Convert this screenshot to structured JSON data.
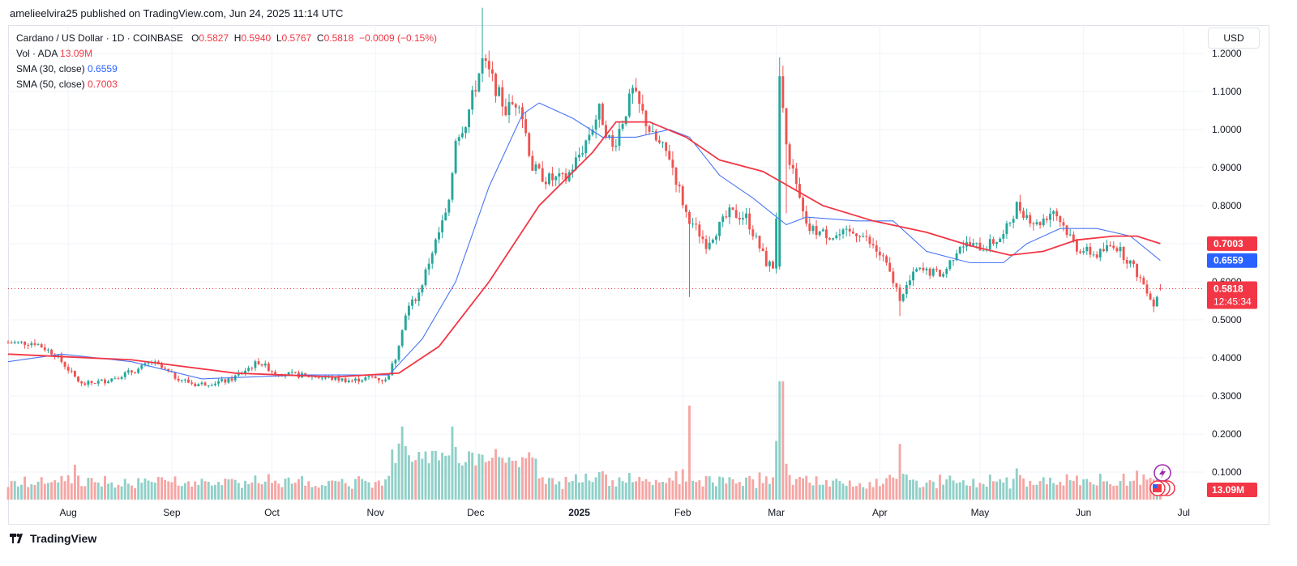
{
  "header": {
    "published_line": "amelieelvira25 published on TradingView.com, Jun 24, 2025 11:14 UTC"
  },
  "legend": {
    "symbol": "Cardano / US Dollar · 1D · COINBASE",
    "o_label": "O",
    "o_value": "0.5827",
    "h_label": "H",
    "h_value": "0.5940",
    "l_label": "L",
    "l_value": "0.5767",
    "c_label": "C",
    "c_value": "0.5818",
    "change": "−0.0009 (−0.15%)",
    "vol_label": "Vol · ADA",
    "vol_value": "13.09M",
    "sma30_label": "SMA (30, close)",
    "sma30_value": "0.6559",
    "sma50_label": "SMA (50, close)",
    "sma50_value": "0.7003"
  },
  "currency_button": "USD",
  "footer": {
    "brand": "TradingView"
  },
  "colors": {
    "up": "#26a69a",
    "down": "#ef5350",
    "up_vol": "#8fd0c8",
    "down_vol": "#f5a6a4",
    "sma30": "#4a76f2",
    "sma50": "#f23645",
    "grid": "#f0f3fa",
    "axis_text": "#131722"
  },
  "chart_data": {
    "type": "candlestick",
    "title": "Cardano / US Dollar · 1D · COINBASE",
    "x_axis": {
      "ticks": [
        "Aug",
        "Sep",
        "Oct",
        "Nov",
        "Dec",
        "2025",
        "Feb",
        "Mar",
        "Apr",
        "May",
        "Jun",
        "Jul"
      ],
      "range": [
        "2024-07-14",
        "2025-07-07"
      ]
    },
    "y_axis": {
      "ticks": [
        "1.2000",
        "1.1000",
        "1.0000",
        "0.9000",
        "0.8000",
        "0.7000",
        "0.6000",
        "0.5000",
        "0.4000",
        "0.3000",
        "0.2000",
        "0.1000"
      ],
      "range": [
        0.0,
        1.2
      ],
      "position": "right"
    },
    "price_key_points": [
      [
        "2024-07-14",
        0.44
      ],
      [
        "2024-07-22",
        0.44
      ],
      [
        "2024-07-28",
        0.41
      ],
      [
        "2024-08-05",
        0.33
      ],
      [
        "2024-08-12",
        0.34
      ],
      [
        "2024-08-22",
        0.37
      ],
      [
        "2024-08-26",
        0.39
      ],
      [
        "2024-09-02",
        0.35
      ],
      [
        "2024-09-08",
        0.33
      ],
      [
        "2024-09-18",
        0.34
      ],
      [
        "2024-09-27",
        0.39
      ],
      [
        "2024-10-02",
        0.36
      ],
      [
        "2024-10-15",
        0.35
      ],
      [
        "2024-10-25",
        0.34
      ],
      [
        "2024-10-31",
        0.35
      ],
      [
        "2024-11-04",
        0.34
      ],
      [
        "2024-11-07",
        0.4
      ],
      [
        "2024-11-10",
        0.52
      ],
      [
        "2024-11-14",
        0.57
      ],
      [
        "2024-11-18",
        0.68
      ],
      [
        "2024-11-23",
        0.8
      ],
      [
        "2024-11-25",
        0.98
      ],
      [
        "2024-11-28",
        1.02
      ],
      [
        "2024-12-03",
        1.18
      ],
      [
        "2024-12-06",
        1.13
      ],
      [
        "2024-12-10",
        1.05
      ],
      [
        "2024-12-14",
        1.08
      ],
      [
        "2024-12-18",
        0.9
      ],
      [
        "2024-12-22",
        0.87
      ],
      [
        "2024-12-28",
        0.87
      ],
      [
        "2025-01-02",
        0.95
      ],
      [
        "2025-01-07",
        1.05
      ],
      [
        "2025-01-11",
        0.95
      ],
      [
        "2025-01-17",
        1.1
      ],
      [
        "2025-01-23",
        0.98
      ],
      [
        "2025-01-28",
        0.93
      ],
      [
        "2025-02-02",
        0.78
      ],
      [
        "2025-02-08",
        0.7
      ],
      [
        "2025-02-15",
        0.78
      ],
      [
        "2025-02-20",
        0.77
      ],
      [
        "2025-02-26",
        0.65
      ],
      [
        "2025-02-28",
        0.64
      ],
      [
        "2025-03-03",
        1.04
      ],
      [
        "2025-03-05",
        0.92
      ],
      [
        "2025-03-10",
        0.74
      ],
      [
        "2025-03-18",
        0.72
      ],
      [
        "2025-03-26",
        0.73
      ],
      [
        "2025-04-02",
        0.66
      ],
      [
        "2025-04-07",
        0.56
      ],
      [
        "2025-04-12",
        0.63
      ],
      [
        "2025-04-20",
        0.62
      ],
      [
        "2025-04-25",
        0.7
      ],
      [
        "2025-05-02",
        0.69
      ],
      [
        "2025-05-08",
        0.72
      ],
      [
        "2025-05-12",
        0.8
      ],
      [
        "2025-05-18",
        0.75
      ],
      [
        "2025-05-23",
        0.79
      ],
      [
        "2025-05-30",
        0.69
      ],
      [
        "2025-06-05",
        0.67
      ],
      [
        "2025-06-10",
        0.7
      ],
      [
        "2025-06-15",
        0.65
      ],
      [
        "2025-06-20",
        0.58
      ],
      [
        "2025-06-22",
        0.54
      ],
      [
        "2025-06-24",
        0.5818
      ]
    ],
    "spikes": [
      {
        "date": "2025-02-03",
        "low": 0.56
      },
      {
        "date": "2025-03-02",
        "high": 1.19,
        "open": 0.64,
        "close": 1.14
      },
      {
        "date": "2025-03-04",
        "high": 1.03,
        "low": 0.78
      },
      {
        "date": "2024-12-03",
        "high": 1.32
      },
      {
        "date": "2025-04-07",
        "low": 0.51
      },
      {
        "date": "2025-06-22",
        "low": 0.52
      }
    ],
    "series": [
      {
        "name": "SMA (30, close)",
        "last_value": 0.6559,
        "points": [
          [
            "2024-07-14",
            0.39
          ],
          [
            "2024-07-30",
            0.41
          ],
          [
            "2024-08-20",
            0.39
          ],
          [
            "2024-09-10",
            0.345
          ],
          [
            "2024-10-10",
            0.355
          ],
          [
            "2024-11-05",
            0.355
          ],
          [
            "2024-11-15",
            0.45
          ],
          [
            "2024-11-25",
            0.6
          ],
          [
            "2024-12-05",
            0.85
          ],
          [
            "2024-12-15",
            1.04
          ],
          [
            "2024-12-20",
            1.07
          ],
          [
            "2024-12-30",
            1.03
          ],
          [
            "2025-01-08",
            0.98
          ],
          [
            "2025-01-18",
            0.98
          ],
          [
            "2025-01-28",
            1.0
          ],
          [
            "2025-02-03",
            0.98
          ],
          [
            "2025-02-12",
            0.88
          ],
          [
            "2025-02-22",
            0.82
          ],
          [
            "2025-03-04",
            0.75
          ],
          [
            "2025-03-10",
            0.77
          ],
          [
            "2025-03-25",
            0.76
          ],
          [
            "2025-04-05",
            0.76
          ],
          [
            "2025-04-15",
            0.68
          ],
          [
            "2025-04-28",
            0.65
          ],
          [
            "2025-05-08",
            0.65
          ],
          [
            "2025-05-15",
            0.7
          ],
          [
            "2025-05-25",
            0.74
          ],
          [
            "2025-06-05",
            0.74
          ],
          [
            "2025-06-15",
            0.72
          ],
          [
            "2025-06-24",
            0.6559
          ]
        ]
      },
      {
        "name": "SMA (50, close)",
        "last_value": 0.7003,
        "points": [
          [
            "2024-07-14",
            0.41
          ],
          [
            "2024-08-20",
            0.395
          ],
          [
            "2024-09-20",
            0.36
          ],
          [
            "2024-10-20",
            0.35
          ],
          [
            "2024-11-08",
            0.36
          ],
          [
            "2024-11-20",
            0.43
          ],
          [
            "2024-12-05",
            0.6
          ],
          [
            "2024-12-20",
            0.8
          ],
          [
            "2025-01-05",
            0.94
          ],
          [
            "2025-01-12",
            1.02
          ],
          [
            "2025-01-22",
            1.02
          ],
          [
            "2025-02-02",
            0.98
          ],
          [
            "2025-02-12",
            0.92
          ],
          [
            "2025-02-25",
            0.89
          ],
          [
            "2025-03-05",
            0.85
          ],
          [
            "2025-03-15",
            0.8
          ],
          [
            "2025-03-30",
            0.76
          ],
          [
            "2025-04-15",
            0.73
          ],
          [
            "2025-04-28",
            0.695
          ],
          [
            "2025-05-10",
            0.67
          ],
          [
            "2025-05-20",
            0.68
          ],
          [
            "2025-05-30",
            0.71
          ],
          [
            "2025-06-10",
            0.72
          ],
          [
            "2025-06-17",
            0.72
          ],
          [
            "2025-06-24",
            0.7003
          ]
        ]
      }
    ],
    "volume_spikes": [
      [
        "2024-08-03",
        0.1
      ],
      [
        "2024-11-09",
        0.21
      ],
      [
        "2024-11-24",
        0.21
      ],
      [
        "2025-02-03",
        0.27
      ],
      [
        "2025-03-02",
        0.34
      ],
      [
        "2025-03-03",
        0.34
      ],
      [
        "2025-04-07",
        0.16
      ]
    ],
    "price_labels": [
      {
        "name": "SMA 50",
        "value": "0.7003",
        "color": "#f23645"
      },
      {
        "name": "SMA 30",
        "value": "0.6559",
        "color": "#2962ff"
      },
      {
        "name": "Last",
        "value": "0.5818",
        "countdown": "12:45:34",
        "color": "#f23645"
      }
    ],
    "volume_label": "13.09M"
  }
}
